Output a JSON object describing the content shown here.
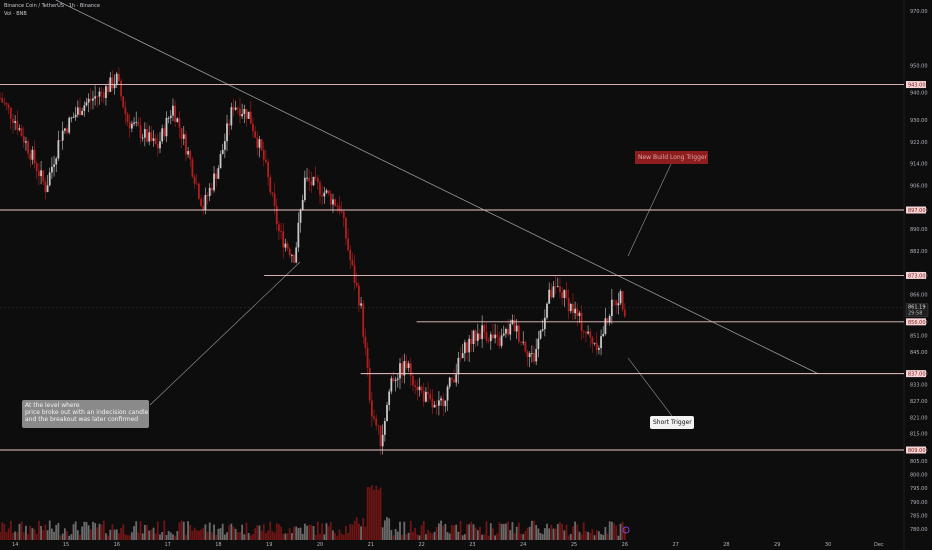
{
  "header": {
    "symbol_line": "Binance Coin / TetherUS · 1h · Binance",
    "volume_line": "Vol · BNB"
  },
  "annotations": {
    "level_note": [
      "At the level where",
      "price broke out with an indecision candle",
      "and the breakout was later confirmed"
    ],
    "long_trigger": "New Build Long Trigger",
    "short_trigger": "Short Trigger"
  },
  "price_tag": {
    "value": "861.19",
    "countdown": "29:58"
  },
  "colors": {
    "background": "#0d0d0d",
    "bull": "#c8c8c8",
    "bear": "#b41e1e",
    "level_line": "#f0c8c8",
    "level_label_bg": "#f8d4d4",
    "trendline": "#9a9a9a",
    "axis_text": "#b2b5be"
  },
  "chart_data": {
    "type": "candlestick",
    "y_axis": {
      "range": [
        776,
        974
      ],
      "ticks": [
        "970.00",
        "950.00",
        "940.00",
        "930.00",
        "922.00",
        "914.00",
        "906.00",
        "897.00",
        "890.00",
        "882.00",
        "873.00",
        "866.00",
        "856.00",
        "851.00",
        "845.00",
        "837.00",
        "833.00",
        "827.00",
        "821.00",
        "815.00",
        "809.00",
        "805.00",
        "800.00",
        "795.00",
        "790.00",
        "785.00",
        "780.00"
      ]
    },
    "x_axis": {
      "labels": [
        "14",
        "15",
        "16",
        "17",
        "18",
        "19",
        "20",
        "21",
        "22",
        "23",
        "24",
        "25",
        "26",
        "27",
        "28",
        "29",
        "30",
        "Dec"
      ]
    },
    "levels": [
      {
        "price": 943,
        "label": "943.00",
        "from_day": 13.7
      },
      {
        "price": 897,
        "label": "897.00",
        "from_day": 13.7
      },
      {
        "price": 873,
        "label": "873.00",
        "from_day": 18.9
      },
      {
        "price": 856,
        "label": "856.00",
        "from_day": 21.9
      },
      {
        "price": 837,
        "label": "837.00",
        "from_day": 20.8
      },
      {
        "price": 809,
        "label": "809.00",
        "from_day": 13.7
      }
    ],
    "trendline": {
      "start": [
        14.8,
        974
      ],
      "end": [
        29.8,
        837
      ]
    },
    "current_price": 861.19,
    "candle_count": 290,
    "price_path": [
      [
        13.7,
        938
      ],
      [
        14.0,
        930
      ],
      [
        14.3,
        918
      ],
      [
        14.6,
        905
      ],
      [
        14.9,
        925
      ],
      [
        15.3,
        935
      ],
      [
        15.7,
        940
      ],
      [
        16.0,
        945
      ],
      [
        16.2,
        930
      ],
      [
        16.5,
        925
      ],
      [
        16.8,
        920
      ],
      [
        17.1,
        935
      ],
      [
        17.4,
        918
      ],
      [
        17.7,
        898
      ],
      [
        18.0,
        913
      ],
      [
        18.3,
        936
      ],
      [
        18.6,
        932
      ],
      [
        18.9,
        915
      ],
      [
        19.2,
        888
      ],
      [
        19.5,
        880
      ],
      [
        19.7,
        908
      ],
      [
        20.0,
        905
      ],
      [
        20.4,
        898
      ],
      [
        20.6,
        878
      ],
      [
        20.8,
        862
      ],
      [
        21.0,
        825
      ],
      [
        21.2,
        812
      ],
      [
        21.4,
        835
      ],
      [
        21.7,
        840
      ],
      [
        22.0,
        830
      ],
      [
        22.3,
        823
      ],
      [
        22.6,
        835
      ],
      [
        22.9,
        848
      ],
      [
        23.2,
        853
      ],
      [
        23.5,
        848
      ],
      [
        23.8,
        855
      ],
      [
        24.2,
        842
      ],
      [
        24.5,
        865
      ],
      [
        24.7,
        868
      ],
      [
        25.0,
        860
      ],
      [
        25.3,
        850
      ],
      [
        25.5,
        848
      ],
      [
        25.7,
        860
      ],
      [
        25.9,
        866
      ],
      [
        26.0,
        861
      ]
    ],
    "volume_axis": {
      "range": [
        0,
        100
      ]
    }
  }
}
